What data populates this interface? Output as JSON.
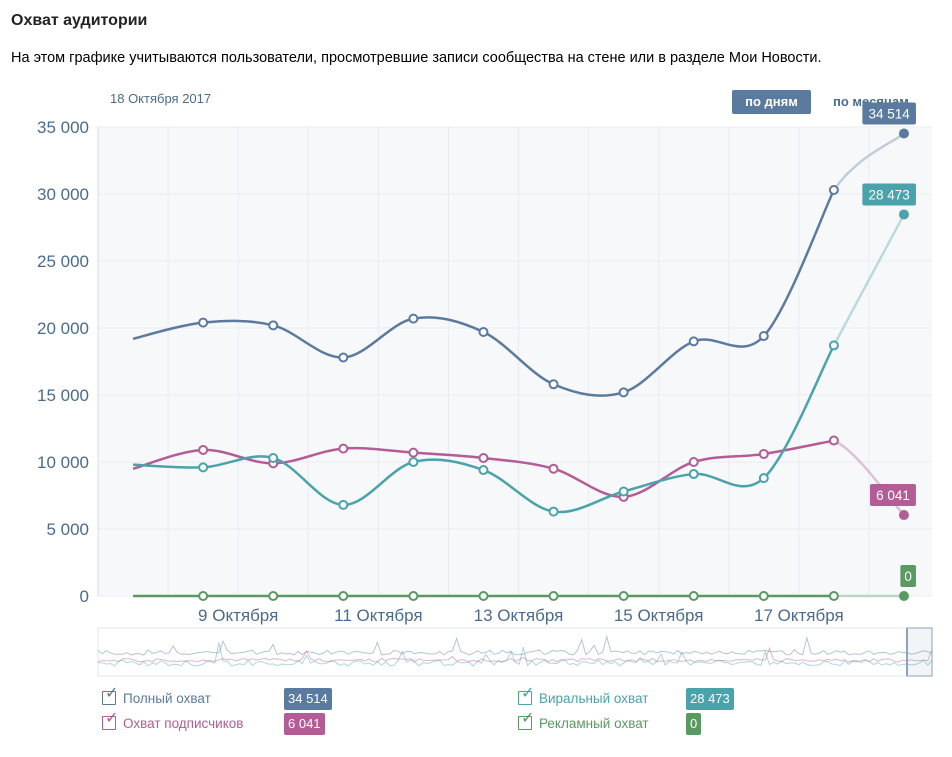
{
  "header": {
    "title": "Охват аудитории",
    "description": "На этом графике учитываются пользователи, просмотревшие записи сообщества на стене или в разделе Мои Новости.",
    "date": "18 Октября 2017",
    "btn_days": "по дням",
    "btn_months": "по месяцам"
  },
  "colors": {
    "full": "#5b7a9f",
    "subscribers": "#b35c95",
    "viral": "#4aa3ab",
    "ads": "#5a9a62",
    "grid": "#e8ecf2",
    "axis_text": "#4a6b8f"
  },
  "chart_data": {
    "type": "line",
    "x_labels": [
      "9 Октября",
      "11 Октября",
      "13 Октября",
      "15 Октября",
      "17 Октября"
    ],
    "y_ticks": [
      "0",
      "5 000",
      "10 000",
      "15 000",
      "20 000",
      "25 000",
      "30 000",
      "35 000"
    ],
    "ylim": [
      0,
      35000
    ],
    "x": [
      7.5,
      8.5,
      9.5,
      10.5,
      11.5,
      12.5,
      13.5,
      14.5,
      15.5,
      16.5,
      17.5,
      18.5
    ],
    "series": [
      {
        "name": "Полный охват",
        "key": "full",
        "values": [
          19200,
          20400,
          20200,
          17800,
          20700,
          19700,
          15800,
          15200,
          19000,
          19400,
          30300,
          34514
        ]
      },
      {
        "name": "Охват подписчиков",
        "key": "subscribers",
        "values": [
          9500,
          10900,
          9900,
          11000,
          10700,
          10300,
          9500,
          7400,
          10000,
          10600,
          11600,
          6041
        ]
      },
      {
        "name": "Виральный охват",
        "key": "viral",
        "values": [
          9800,
          9600,
          10300,
          6800,
          10000,
          9400,
          6300,
          7800,
          9100,
          8800,
          18700,
          28473
        ]
      },
      {
        "name": "Рекламный охват",
        "key": "ads",
        "values": [
          0,
          0,
          0,
          0,
          0,
          0,
          0,
          0,
          0,
          0,
          0,
          0
        ]
      }
    ],
    "end_labels": [
      "34 514",
      "28 473",
      "6 041",
      "0"
    ],
    "grid": true
  },
  "legend": [
    {
      "key": "full",
      "label": "Полный охват",
      "value": "34 514"
    },
    {
      "key": "subscribers",
      "label": "Охват подписчиков",
      "value": "6 041"
    },
    {
      "key": "viral",
      "label": "Виральный охват",
      "value": "28 473"
    },
    {
      "key": "ads",
      "label": "Рекламный охват",
      "value": "0"
    }
  ]
}
